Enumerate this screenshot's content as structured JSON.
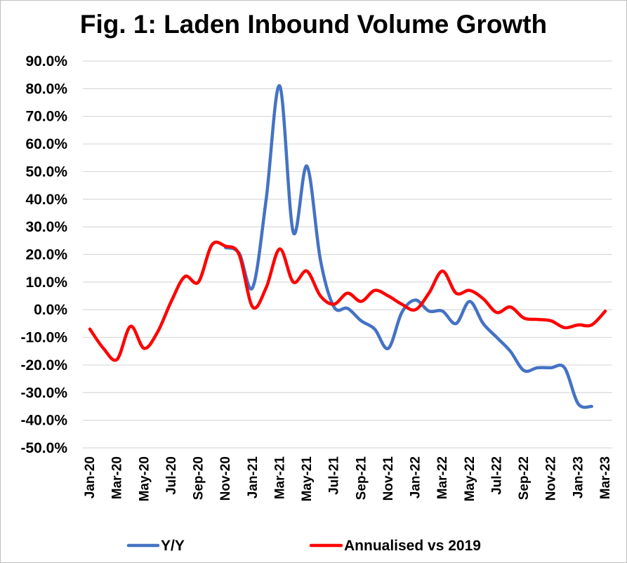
{
  "title": "Fig. 1: Laden Inbound Volume Growth",
  "chart_data": {
    "type": "line",
    "title": "Fig. 1: Laden Inbound Volume Growth",
    "xlabel": "",
    "ylabel": "",
    "ylim": [
      -50,
      90
    ],
    "y_tick_labels": [
      "90.0%",
      "80.0%",
      "70.0%",
      "60.0%",
      "50.0%",
      "40.0%",
      "30.0%",
      "20.0%",
      "10.0%",
      "0.0%",
      "-10.0%",
      "-20.0%",
      "-30.0%",
      "-40.0%",
      "-50.0%"
    ],
    "y_tick_values": [
      90,
      80,
      70,
      60,
      50,
      40,
      30,
      20,
      10,
      0,
      -10,
      -20,
      -30,
      -40,
      -50
    ],
    "x_tick_labels": [
      "Jan-20",
      "Mar-20",
      "May-20",
      "Jul-20",
      "Sep-20",
      "Nov-20",
      "Jan-21",
      "Mar-21",
      "May-21",
      "Jul-21",
      "Sep-21",
      "Nov-21",
      "Jan-22",
      "Mar-22",
      "May-22",
      "Jul-22",
      "Sep-22",
      "Nov-22",
      "Jan-23",
      "Mar-23"
    ],
    "x": [
      "Jan-20",
      "Feb-20",
      "Mar-20",
      "Apr-20",
      "May-20",
      "Jun-20",
      "Jul-20",
      "Aug-20",
      "Sep-20",
      "Oct-20",
      "Nov-20",
      "Dec-20",
      "Jan-21",
      "Feb-21",
      "Mar-21",
      "Apr-21",
      "May-21",
      "Jun-21",
      "Jul-21",
      "Aug-21",
      "Sep-21",
      "Oct-21",
      "Nov-21",
      "Dec-21",
      "Jan-22",
      "Feb-22",
      "Mar-22",
      "Apr-22",
      "May-22",
      "Jun-22",
      "Jul-22",
      "Aug-22",
      "Sep-22",
      "Oct-22",
      "Nov-22",
      "Dec-22",
      "Jan-23",
      "Feb-23",
      "Mar-23"
    ],
    "grid": true,
    "legend_position": "bottom",
    "series": [
      {
        "name": "Y/Y",
        "color": "#4472c4",
        "values": [
          null,
          null,
          null,
          null,
          null,
          null,
          null,
          null,
          null,
          null,
          22.5,
          20.5,
          8,
          40,
          81,
          28,
          52,
          18,
          1,
          0.5,
          -4,
          -7,
          -14,
          -1,
          3.5,
          -0.5,
          -0.5,
          -5,
          3,
          -5,
          -10,
          -15,
          -22,
          -21,
          -21,
          -21,
          -34,
          -35,
          null
        ]
      },
      {
        "name": "Annualised vs 2019",
        "color": "#ff0000",
        "values": [
          -7,
          -14,
          -18,
          -6,
          -14,
          -8,
          3,
          12,
          10,
          23.5,
          23,
          20,
          1,
          8,
          22,
          10,
          14,
          5,
          2,
          6,
          3,
          7,
          5,
          2,
          0,
          6,
          14,
          6,
          7,
          4,
          -1,
          1,
          -3,
          -3.5,
          -4,
          -6.5,
          -5.5,
          -5.5,
          -0.5
        ]
      }
    ]
  }
}
